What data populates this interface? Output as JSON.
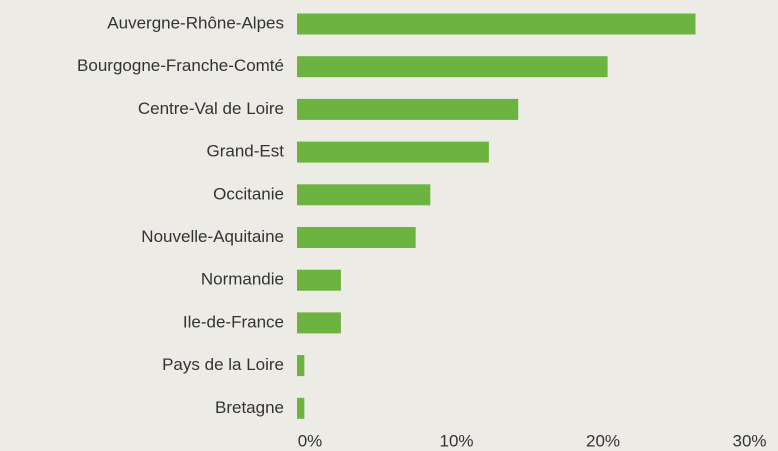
{
  "chart_data": {
    "type": "bar",
    "orientation": "horizontal",
    "categories": [
      "Auvergne-Rhône-Alpes",
      "Bourgogne-Franche-Comté",
      "Centre-Val de Loire",
      "Grand-Est",
      "Occitanie",
      "Nouvelle-Aquitaine",
      "Normandie",
      "Ile-de-France",
      "Pays de la Loire",
      "Bretagne"
    ],
    "values": [
      27.2,
      21.2,
      15.1,
      13.1,
      9.1,
      8.1,
      3.0,
      3.0,
      0.5,
      0.5
    ],
    "color": "#6db33f",
    "xlim": [
      0,
      30
    ],
    "xticks": [
      {
        "value": 0,
        "label": "0%"
      },
      {
        "value": 10,
        "label": "10%"
      },
      {
        "value": 20,
        "label": "20%"
      },
      {
        "value": 30,
        "label": "30%"
      }
    ],
    "grid": false
  }
}
